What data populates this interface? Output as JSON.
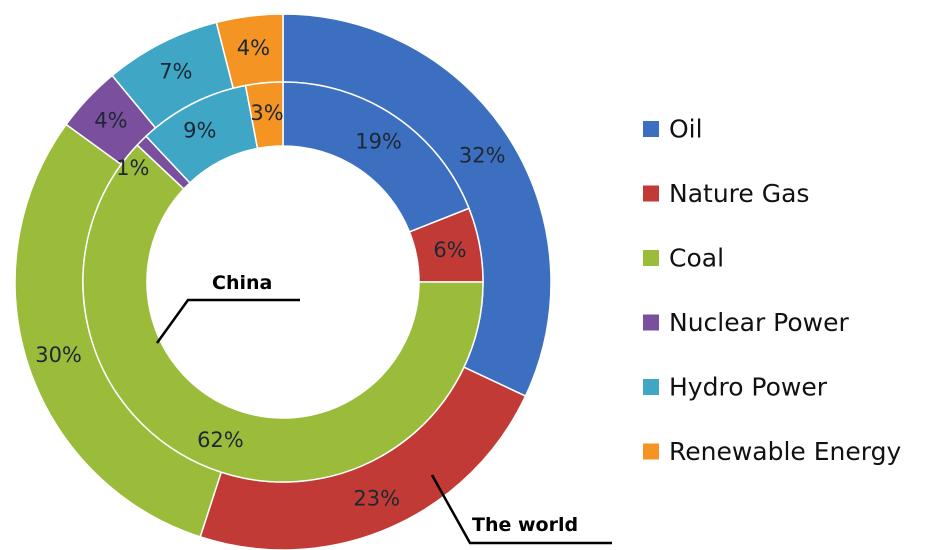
{
  "chart_data": {
    "type": "pie",
    "subtype": "donut",
    "categories": [
      "Oil",
      "Nature Gas",
      "Coal",
      "Nuclear Power",
      "Hydro Power",
      "Renewable Energy"
    ],
    "colors": [
      "#3c6fc0",
      "#c13a35",
      "#9bbb3b",
      "#7a4f9d",
      "#3fa6c6",
      "#f39423"
    ],
    "series": [
      {
        "name": "China",
        "ring": "inner",
        "values": [
          19,
          6,
          62,
          1,
          9,
          3
        ],
        "labels": [
          "19%",
          "6%",
          "62%",
          "1%",
          "9%",
          "3%"
        ]
      },
      {
        "name": "The world",
        "ring": "outer",
        "values": [
          32,
          23,
          30,
          4,
          7,
          4
        ],
        "labels": [
          "32%",
          "23%",
          "30%",
          "4%",
          "7%",
          "4%"
        ]
      }
    ],
    "legend": {
      "position": "right",
      "entries": [
        "Oil",
        "Nature Gas",
        "Coal",
        "Nuclear Power",
        "Hydro Power",
        "Renewable Energy"
      ]
    },
    "start_angle": "12 o'clock",
    "direction": "clockwise"
  }
}
